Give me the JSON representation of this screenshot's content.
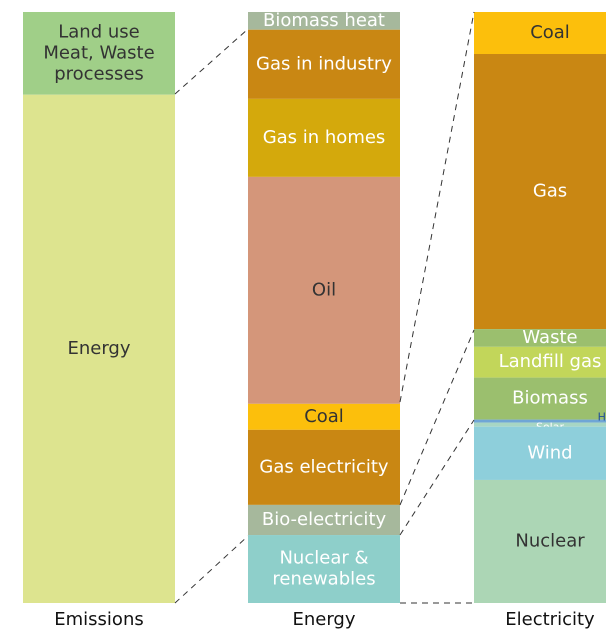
{
  "chart_data": {
    "type": "stacked-columns",
    "columns": [
      {
        "name": "Emissions",
        "segments": [
          {
            "label": [
              "Land use",
              "Meat, Waste",
              "processes"
            ],
            "value": 14,
            "color": "#a0cf88",
            "label_color": "#333333"
          },
          {
            "label": [
              "Energy"
            ],
            "value": 86,
            "color": "#dde48f",
            "label_color": "#333333"
          }
        ]
      },
      {
        "name": "Energy",
        "segments": [
          {
            "label": [
              "Biomass heat"
            ],
            "value": 3,
            "color": "#a6b89c",
            "label_color": "#ffffff"
          },
          {
            "label": [
              "Gas in industry"
            ],
            "value": 11.7,
            "color": "#c98713",
            "label_color": "#ffffff"
          },
          {
            "label": [
              "Gas in homes"
            ],
            "value": 13.2,
            "color": "#d4a90c",
            "label_color": "#ffffff"
          },
          {
            "label": [
              "Oil"
            ],
            "value": 38.4,
            "color": "#d4967a",
            "label_color": "#333333"
          },
          {
            "label": [
              "Coal"
            ],
            "value": 4.4,
            "color": "#fcbf0c",
            "label_color": "#333333"
          },
          {
            "label": [
              "Gas electricity"
            ],
            "value": 12.7,
            "color": "#c98713",
            "label_color": "#ffffff"
          },
          {
            "label": [
              "Bio-electricity"
            ],
            "value": 5.1,
            "color": "#a6b89c",
            "label_color": "#ffffff"
          },
          {
            "label": [
              "Nuclear &",
              "renewables"
            ],
            "value": 11.5,
            "color": "#8ecfca",
            "label_color": "#ffffff"
          }
        ]
      },
      {
        "name": "Electricity",
        "segments": [
          {
            "label": [
              "Coal"
            ],
            "value": 7.1,
            "color": "#fcbf0c",
            "label_color": "#333333"
          },
          {
            "label": [
              "Gas"
            ],
            "value": 46.5,
            "color": "#c98713",
            "label_color": "#ffffff"
          },
          {
            "label": [
              "Waste"
            ],
            "value": 3,
            "color": "#9bbf6e",
            "label_color": "#ffffff"
          },
          {
            "label": [
              "Landfill gas"
            ],
            "value": 5.2,
            "color": "#c2d65a",
            "label_color": "#ffffff"
          },
          {
            "label": [
              "Biomass"
            ],
            "value": 7.1,
            "color": "#9bbf6e",
            "label_color": "#ffffff"
          },
          {
            "label": [
              "Hydro"
            ],
            "value": 0.5,
            "color": "#6fa6d6",
            "label_color": "#1f4e9a"
          },
          {
            "label": [
              "Solar"
            ],
            "value": 0.7,
            "color": "#a7d6c4",
            "label_color": "#ffffff"
          },
          {
            "label": [
              "Wind"
            ],
            "value": 9,
            "color": "#8ecfdb",
            "label_color": "#ffffff"
          },
          {
            "label": [
              "Nuclear"
            ],
            "value": 20.8,
            "color": "#acd6b5",
            "label_color": "#333333"
          }
        ]
      }
    ]
  }
}
